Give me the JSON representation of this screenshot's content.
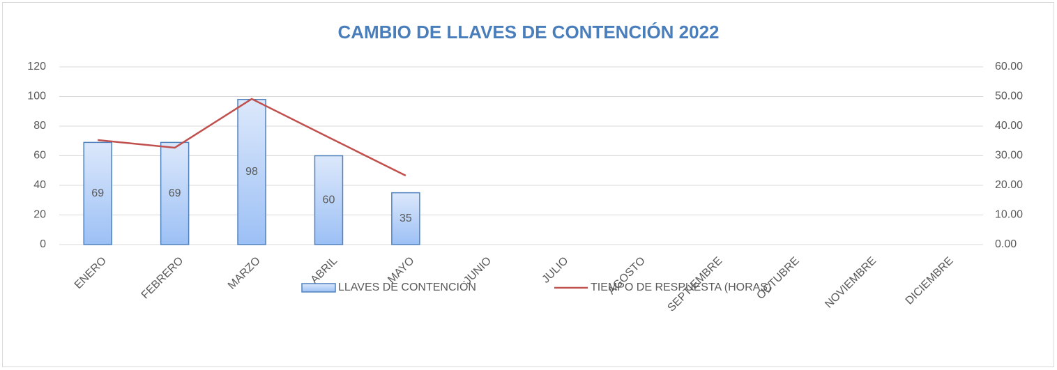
{
  "chart_data": {
    "type": "bar_line",
    "title": "CAMBIO DE LLAVES DE CONTENCIÓN 2022",
    "categories": [
      "ENERO",
      "FEBRERO",
      "MARZO",
      "ABRIL",
      "MAYO",
      "JUNIO",
      "JULIO",
      "AGOSTO",
      "SEPTIEMBRE",
      "OCTUBRE",
      "NOVIEMBRE",
      "DICIEMBRE"
    ],
    "series": [
      {
        "name": "LLAVES DE CONTENCIÓN",
        "type": "bar",
        "color": "#4f81bd",
        "values": [
          69,
          69,
          98,
          60,
          35,
          null,
          null,
          null,
          null,
          null,
          null,
          null
        ]
      },
      {
        "name": "TIEMPO DE RESPUESTA (HORAS)",
        "type": "line",
        "axis": "y2",
        "color": "#c0504d",
        "values": [
          35.3,
          32.7,
          49.2,
          36.2,
          23.3,
          null,
          null,
          null,
          null,
          null,
          null,
          null
        ]
      }
    ],
    "ylim": [
      0,
      120
    ],
    "yticks": [
      0,
      20,
      40,
      60,
      80,
      100,
      120
    ],
    "y2lim": [
      0,
      60
    ],
    "y2ticks": [
      {
        "value": 0,
        "label": "0.00"
      },
      {
        "value": 10,
        "label": "10.00"
      },
      {
        "value": 20,
        "label": "20.00"
      },
      {
        "value": 30,
        "label": "30.00"
      },
      {
        "value": 40,
        "label": "40.00"
      },
      {
        "value": 50,
        "label": "50.00"
      },
      {
        "value": 60,
        "label": "60.00"
      }
    ],
    "grid": true,
    "legend": "bottom"
  }
}
